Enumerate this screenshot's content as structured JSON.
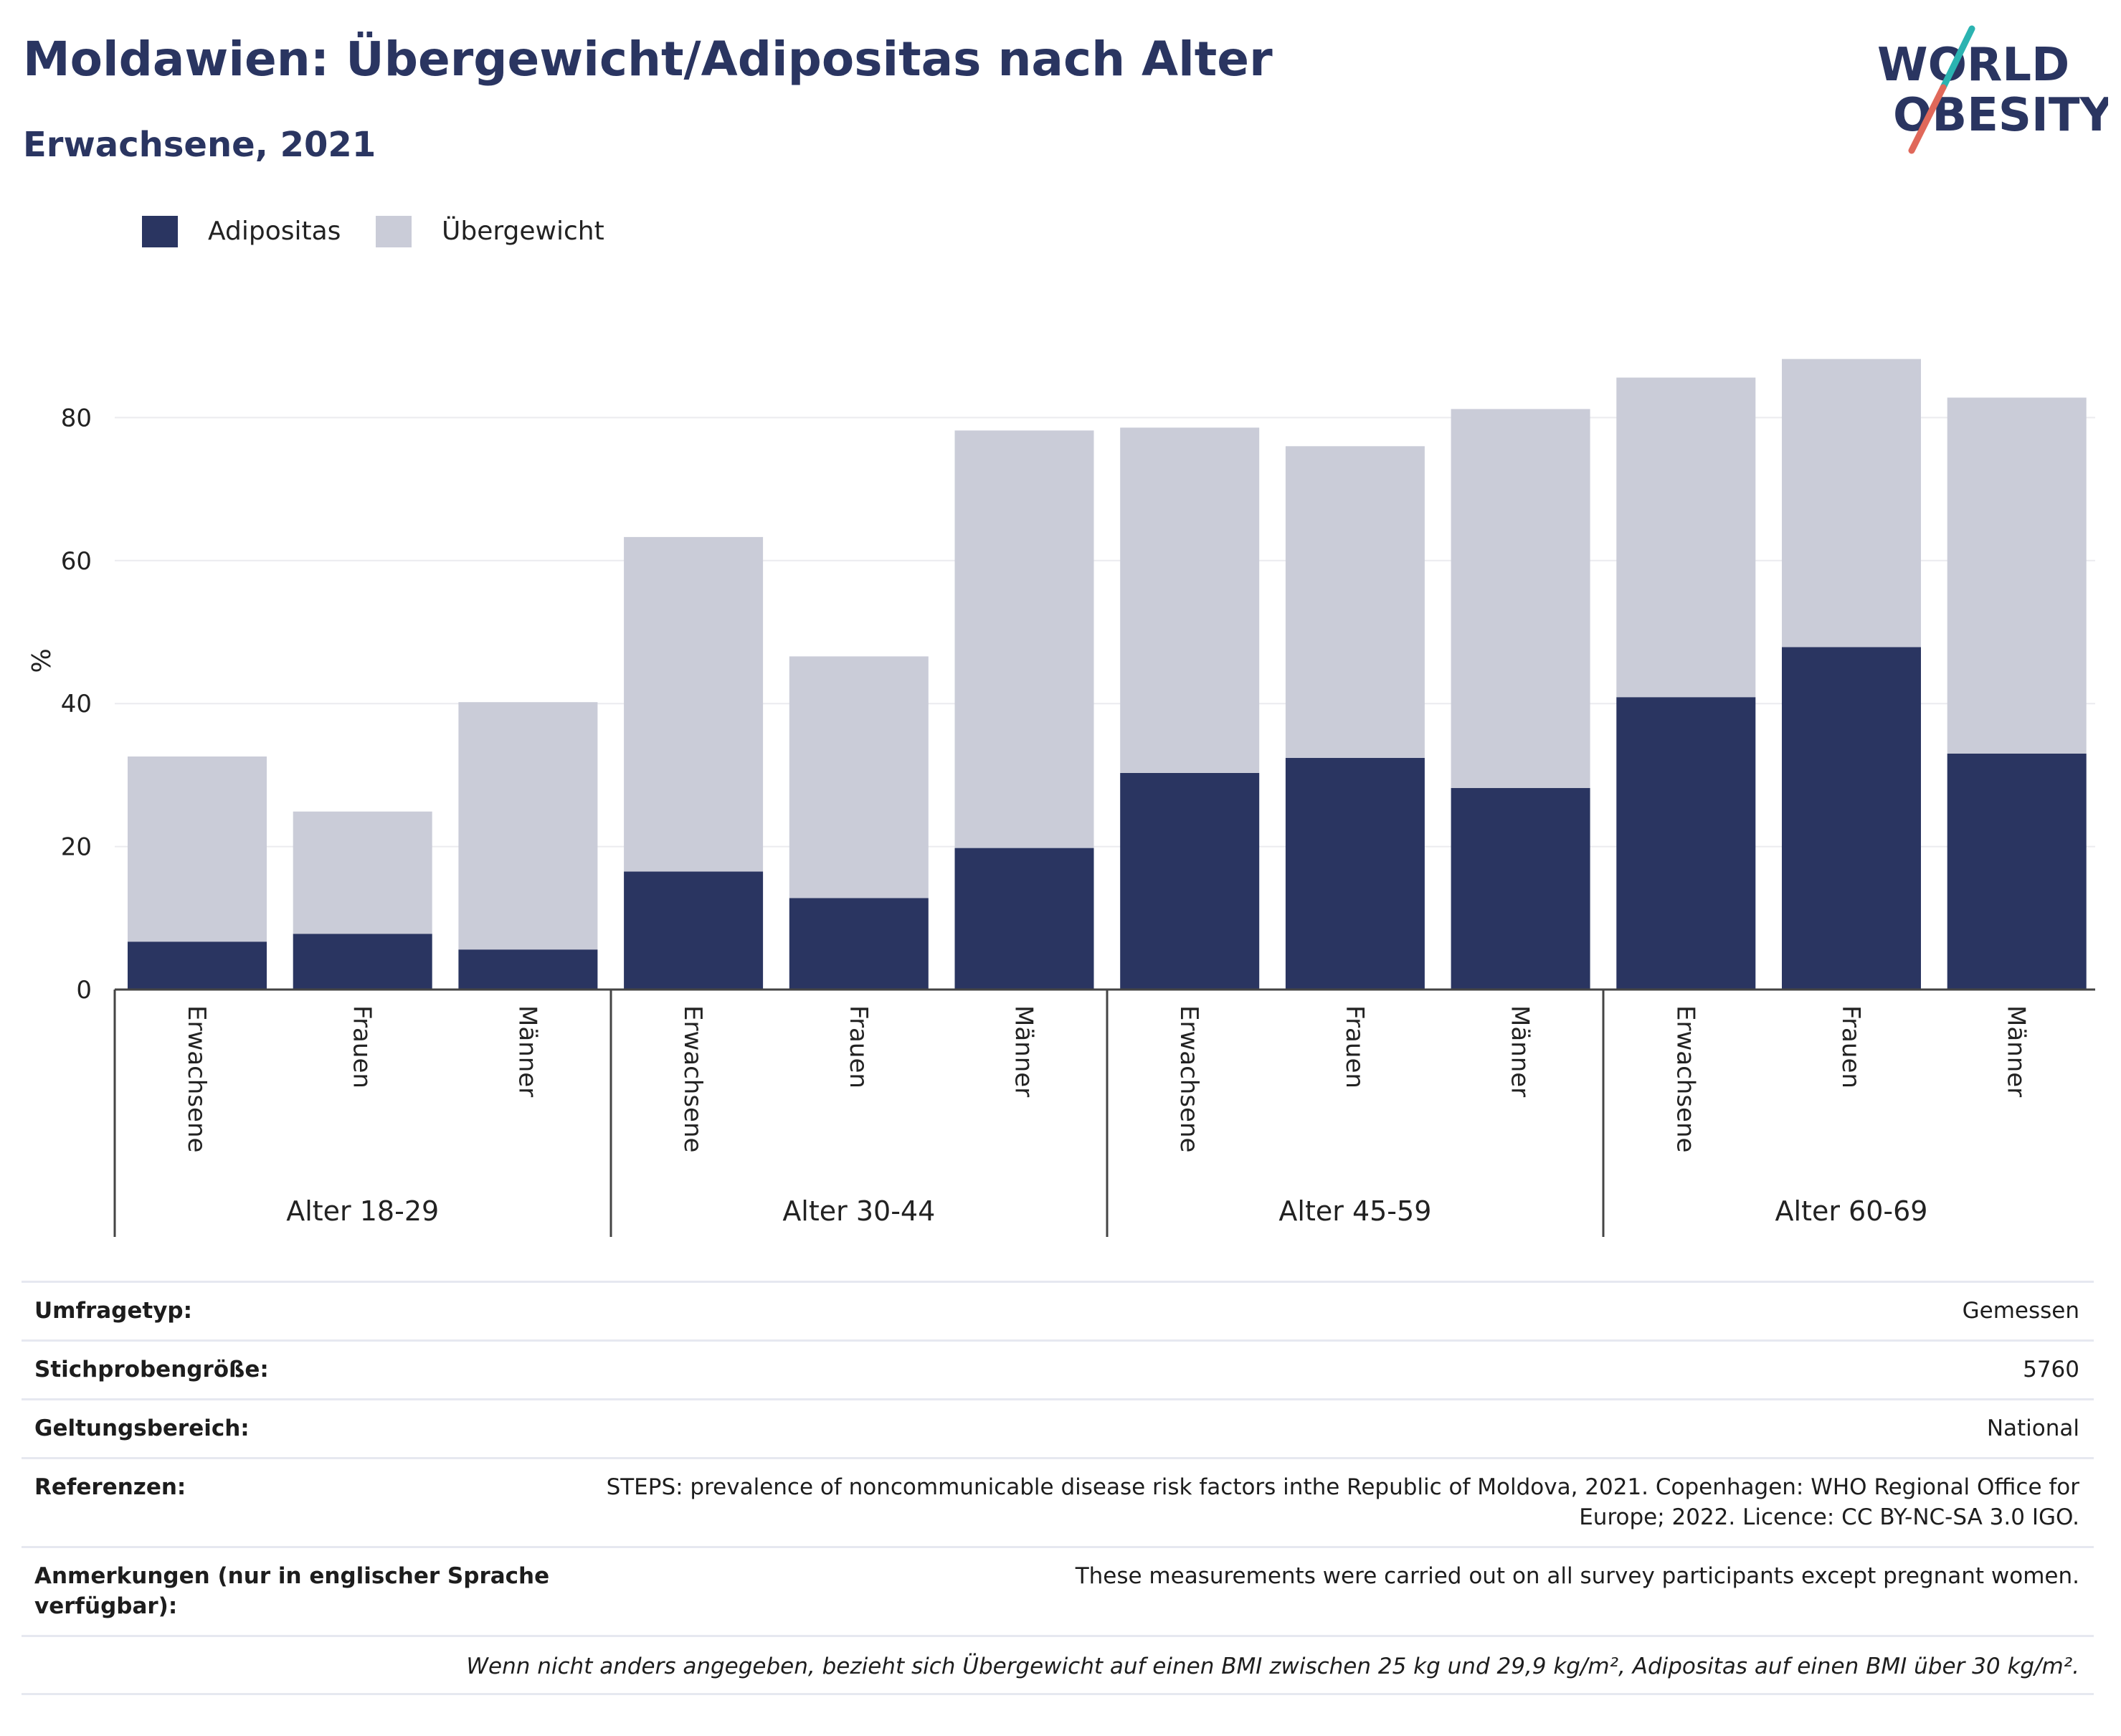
{
  "header": {
    "title": "Moldawien: Übergewicht/Adipositas nach Alter",
    "subtitle": "Erwachsene, 2021"
  },
  "logo": {
    "line1": "WORLD",
    "line2": "OBESITY",
    "accent_teal": "#2bb3b1",
    "accent_red": "#e0685a",
    "text_color": "#2a3561"
  },
  "colors": {
    "obesity": "#2a3561",
    "overweight": "#caccd8",
    "text_dark": "#2a3561"
  },
  "legend": [
    {
      "label": "Adipositas",
      "color": "#2a3561"
    },
    {
      "label": "Übergewicht",
      "color": "#caccd8"
    }
  ],
  "chart_data": {
    "type": "bar",
    "stacked": true,
    "ylabel": "%",
    "ylim": [
      0,
      95
    ],
    "yticks": [
      0,
      20,
      40,
      60,
      80
    ],
    "grid": true,
    "legend_position": "top-left",
    "groups": [
      "Alter 18-29",
      "Alter 30-44",
      "Alter 45-59",
      "Alter 60-69"
    ],
    "subcategories": [
      "Erwachsene",
      "Frauen",
      "Männer"
    ],
    "series": [
      {
        "name": "Adipositas",
        "color": "#2a3561",
        "values": [
          6.7,
          7.8,
          5.6,
          16.5,
          12.8,
          19.8,
          30.3,
          32.4,
          28.2,
          40.9,
          47.9,
          33.0
        ]
      },
      {
        "name": "Übergewicht",
        "color": "#caccd8",
        "values": [
          25.9,
          17.1,
          34.6,
          46.8,
          33.8,
          58.4,
          48.3,
          43.6,
          53.0,
          44.7,
          40.3,
          49.8
        ]
      }
    ]
  },
  "info": [
    {
      "label": "Umfragetyp:",
      "value": "Gemessen"
    },
    {
      "label": "Stichprobengröße:",
      "value": "5760"
    },
    {
      "label": "Geltungsbereich:",
      "value": "National"
    },
    {
      "label": "Referenzen:",
      "value_lines": [
        "STEPS: prevalence of noncommunicable disease risk factors inthe Republic of Moldova, 2021. Copenhagen: WHO Regional Office for",
        "Europe; 2022. Licence: CC BY-NC-SA 3.0 IGO."
      ]
    },
    {
      "label_lines": [
        "Anmerkungen (nur in englischer Sprache",
        "verfügbar):"
      ],
      "value": "These measurements were carried out on all survey participants except pregnant women."
    }
  ],
  "footnote": "Wenn nicht anders angegeben, bezieht sich Übergewicht auf einen BMI zwischen 25 kg und 29,9 kg/m², Adipositas auf einen BMI über 30 kg/m²."
}
